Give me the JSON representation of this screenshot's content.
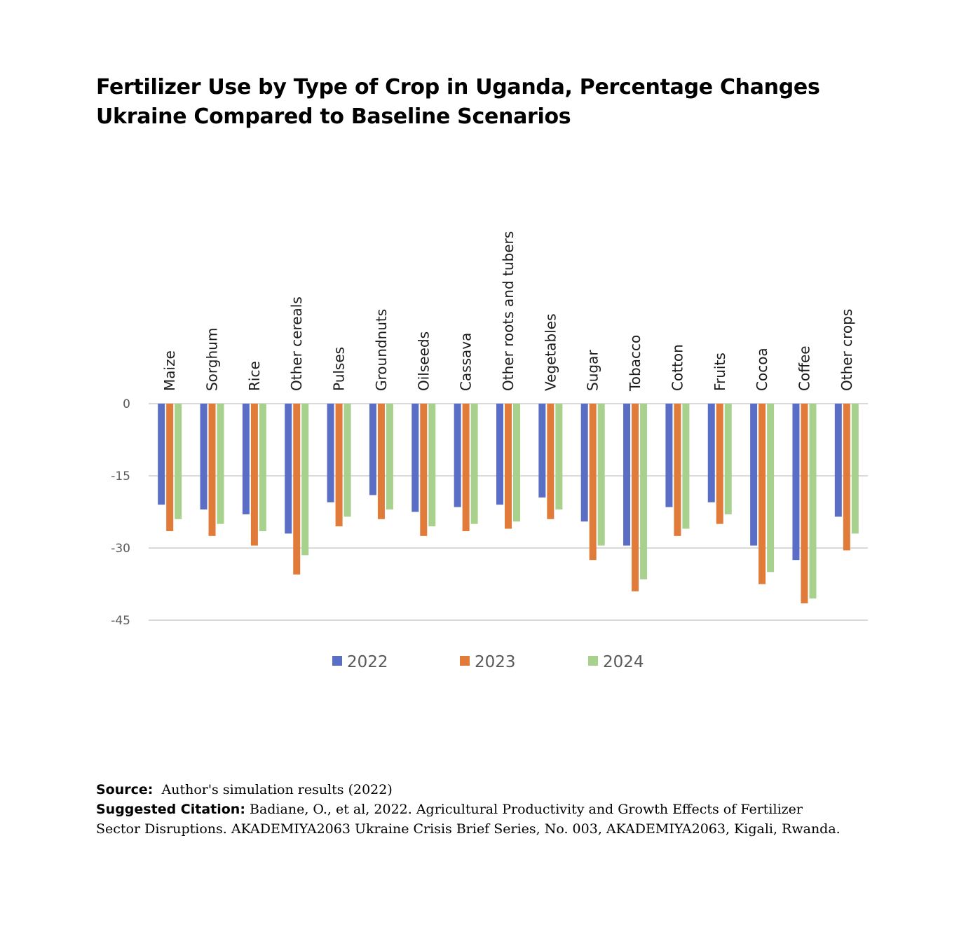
{
  "title_lines": [
    "Fertilizer Use by Type of Crop in Uganda, Percentage Changes",
    "Ukraine Compared to Baseline Scenarios"
  ],
  "chart_data": {
    "type": "bar",
    "categories": [
      "Maize",
      "Sorghum",
      "Rice",
      "Other cereals",
      "Pulses",
      "Groundnuts",
      "Oilseeds",
      "Cassava",
      "Other roots and tubers",
      "Vegetables",
      "Sugar",
      "Tobacco",
      "Cotton",
      "Fruits",
      "Cocoa",
      "Coffee",
      "Other crops"
    ],
    "series": [
      {
        "name": "2022",
        "color": "#5a6ec6",
        "values": [
          -21,
          -22,
          -23,
          -27,
          -20.5,
          -19,
          -22.5,
          -21.5,
          -21,
          -19.5,
          -24.5,
          -29.5,
          -21.5,
          -20.5,
          -29.5,
          -32.5,
          -23.5
        ]
      },
      {
        "name": "2023",
        "color": "#e07b39",
        "values": [
          -26.5,
          -27.5,
          -29.5,
          -35.5,
          -25.5,
          -24,
          -27.5,
          -26.5,
          -26,
          -24,
          -32.5,
          -39,
          -27.5,
          -25,
          -37.5,
          -41.5,
          -30.5
        ]
      },
      {
        "name": "2024",
        "color": "#a9d18e",
        "values": [
          -24,
          -25,
          -26.5,
          -31.5,
          -23.5,
          -22,
          -25.5,
          -25,
          -24.5,
          -22,
          -29.5,
          -36.5,
          -26,
          -23,
          -35,
          -40.5,
          -27
        ]
      }
    ],
    "yticks": [
      0,
      -15,
      -30,
      -45
    ],
    "ylim": [
      -45,
      0
    ],
    "grid": true,
    "legend": "bottom"
  },
  "footer": {
    "source_label": "Source:",
    "source_text": "Author's simulation results (2022)",
    "citation_label": "Suggested Citation:",
    "citation_line1": "Badiane, O., et al, 2022. Agricultural Productivity and Growth Effects of Fertilizer",
    "citation_line2": "Sector Disruptions. AKADEMIYA2063 Ukraine Crisis Brief Series, No. 003, AKADEMIYA2063, Kigali, Rwanda."
  }
}
